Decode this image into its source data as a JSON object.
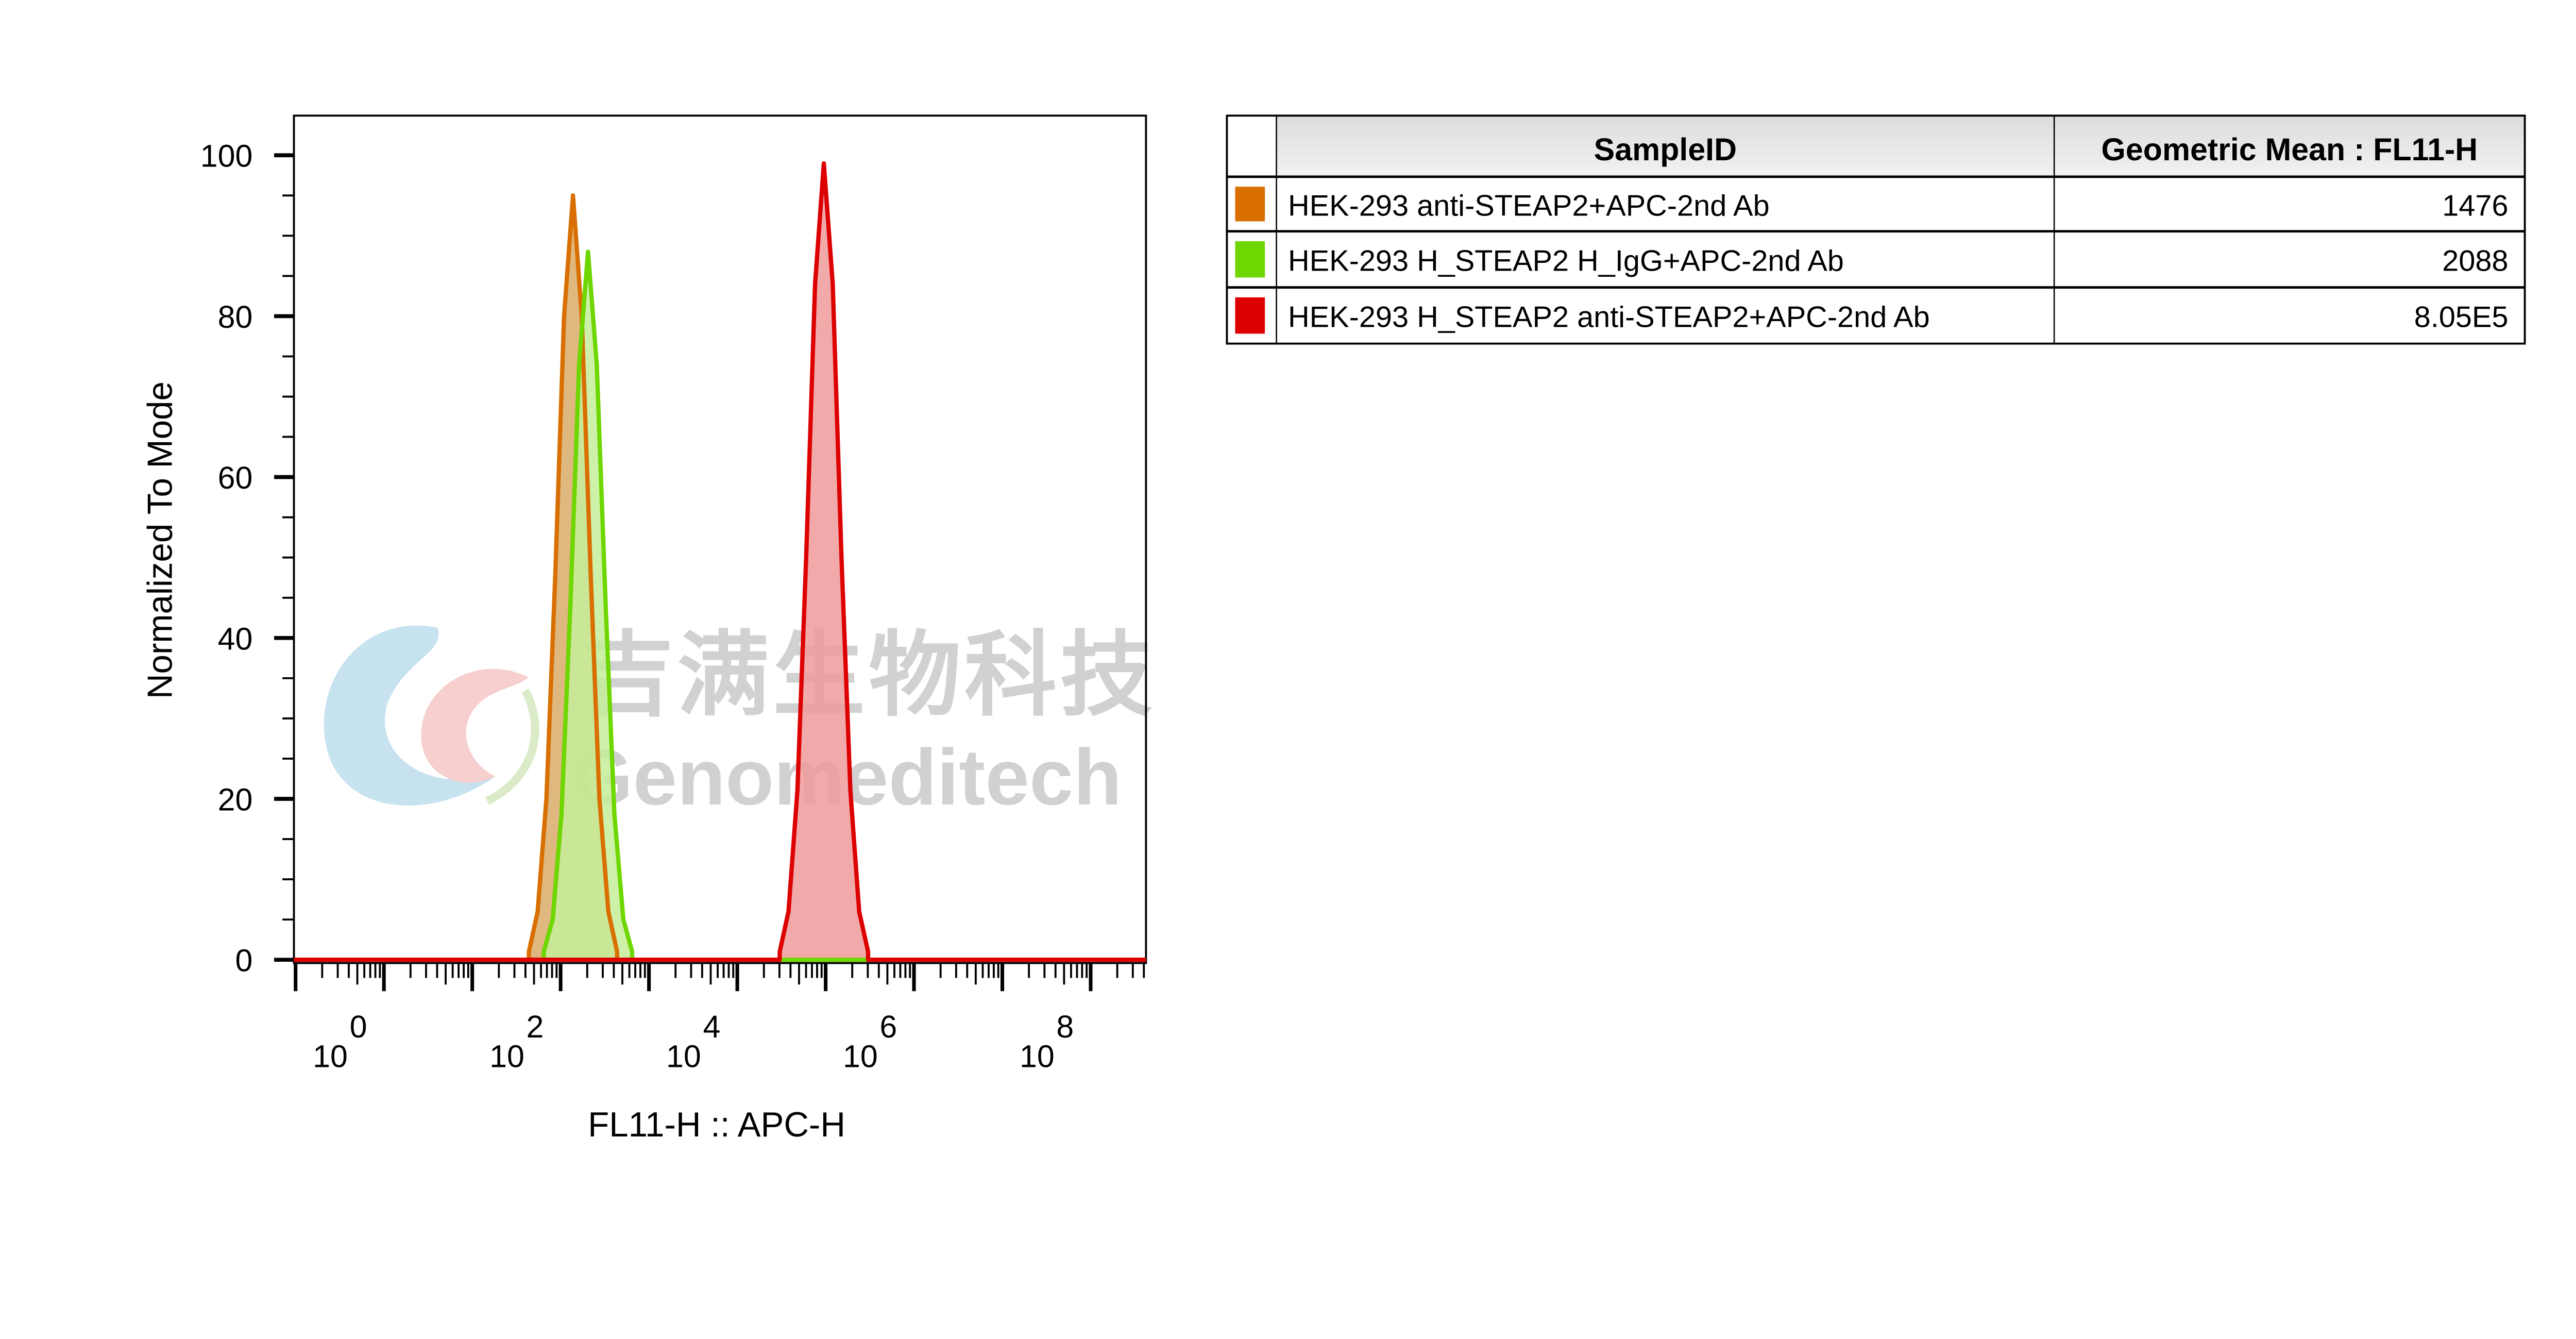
{
  "chart_data": {
    "type": "area",
    "xlabel": "FL11-H :: APC-H",
    "ylabel": "Normalized To Mode",
    "x_scale": "log",
    "x_ticks": [
      {
        "base": "10",
        "exp": "0"
      },
      {
        "base": "10",
        "exp": "2"
      },
      {
        "base": "10",
        "exp": "4"
      },
      {
        "base": "10",
        "exp": "6"
      },
      {
        "base": "10",
        "exp": "8"
      }
    ],
    "xlim": [
      1,
      4000000000
    ],
    "y_ticks": [
      "0",
      "20",
      "40",
      "60",
      "80",
      "100"
    ],
    "ylim": [
      0,
      105
    ],
    "grid": false,
    "series": [
      {
        "name": "HEK-293 anti-STEAP2+APC-2nd Ab",
        "color": "#D86F00",
        "fill": "#D4A055",
        "x": [
          437,
          550,
          692,
          871,
          1096,
          1380,
          1738,
          2188,
          2754,
          3467,
          4365
        ],
        "y": [
          1,
          6,
          20,
          48,
          80,
          95,
          80,
          48,
          20,
          6,
          1
        ]
      },
      {
        "name": "HEK-293 H_STEAP2 H_IgG+APC-2nd Ab",
        "color": "#6ED600",
        "fill": "#C5EE9A",
        "x": [
          646,
          813,
          1023,
          1288,
          1622,
          2042,
          2570,
          3236,
          4074,
          5129,
          6457
        ],
        "y": [
          1,
          5,
          18,
          44,
          74,
          88,
          74,
          44,
          18,
          5,
          1
        ]
      },
      {
        "name": "HEK-293 H_STEAP2 anti-STEAP2+APC-2nd Ab",
        "color": "#DD0000",
        "fill": "#EE9A9A",
        "x": [
          302000,
          380000,
          479000,
          603000,
          759000,
          955000,
          1202000,
          1514000,
          1905000,
          2399000,
          3020000
        ],
        "y": [
          1,
          6,
          21,
          50,
          84,
          99,
          84,
          50,
          21,
          6,
          1
        ]
      }
    ]
  },
  "table": {
    "headers": [
      "SampleID",
      "Geometric Mean : FL11-H"
    ],
    "rows": [
      {
        "sample": "HEK-293 anti-STEAP2+APC-2nd Ab",
        "value": "1476",
        "color": "#D86F00"
      },
      {
        "sample": "HEK-293 H_STEAP2 H_IgG+APC-2nd Ab",
        "value": "2088",
        "color": "#6ED600"
      },
      {
        "sample": "HEK-293 H_STEAP2 anti-STEAP2+APC-2nd Ab",
        "value": "8.05E5",
        "color": "#DD0000"
      }
    ]
  },
  "watermark": {
    "chinese": "吉满生物科技",
    "english": "Genomeditech"
  }
}
